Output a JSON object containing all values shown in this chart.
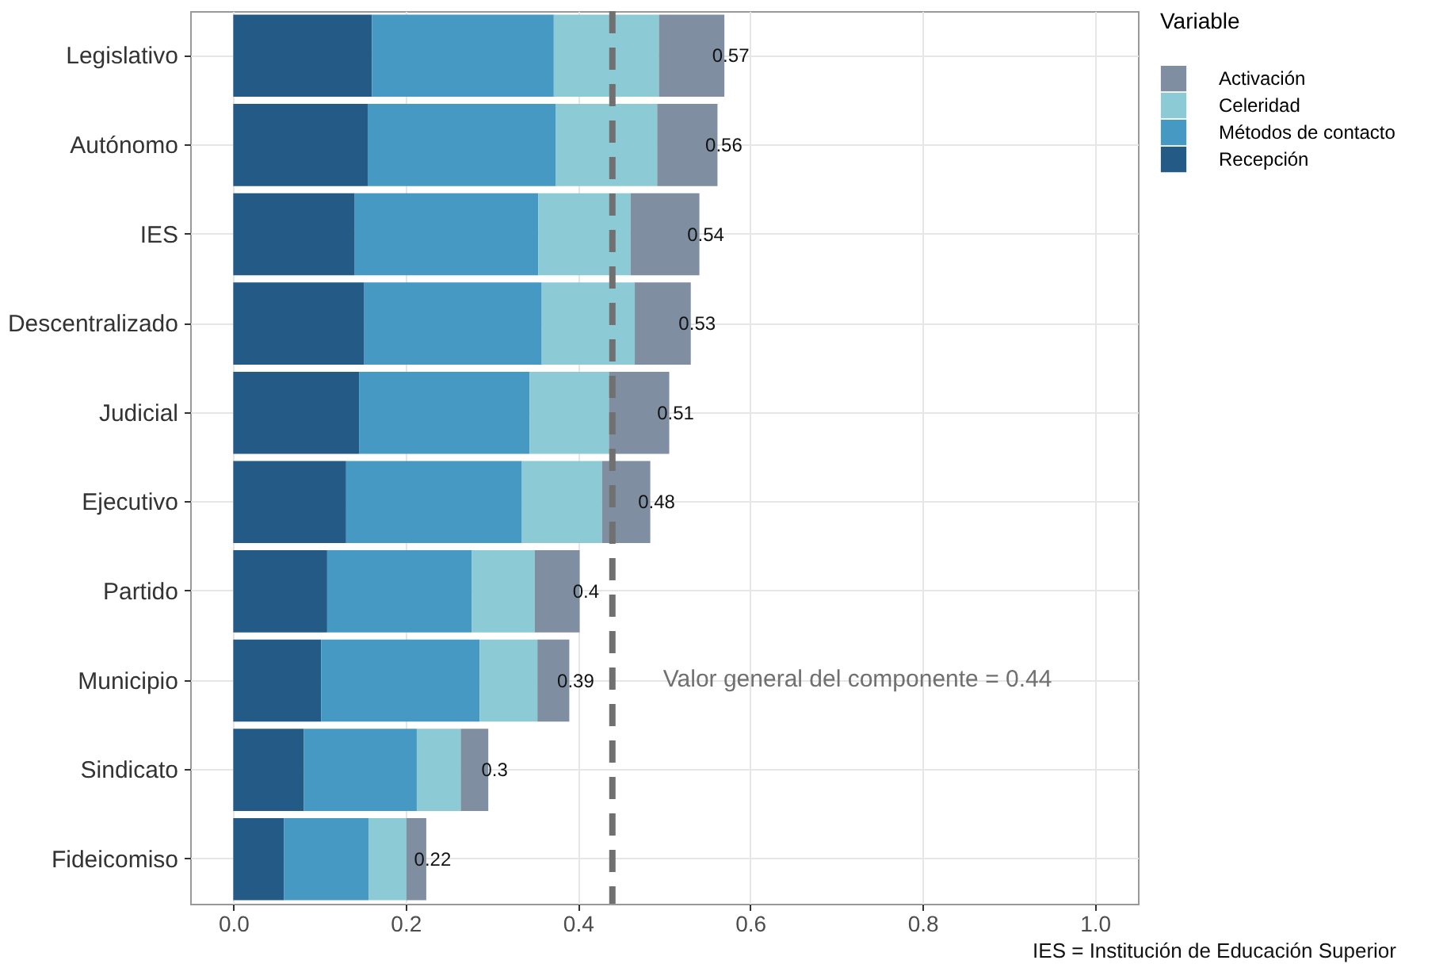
{
  "chart_data": {
    "type": "bar",
    "orientation": "horizontal",
    "stacked": true,
    "categories": [
      "Legislativo",
      "Autónomo",
      "IES",
      "Descentralizado",
      "Judicial",
      "Ejecutivo",
      "Partido",
      "Municipio",
      "Sindicato",
      "Fideicomiso"
    ],
    "series": [
      {
        "name": "Recepción",
        "color": "#235a86",
        "values": [
          0.161,
          0.156,
          0.141,
          0.152,
          0.146,
          0.131,
          0.109,
          0.102,
          0.082,
          0.059
        ]
      },
      {
        "name": "Métodos de contacto",
        "color": "#4599c3",
        "values": [
          0.211,
          0.218,
          0.213,
          0.206,
          0.198,
          0.204,
          0.168,
          0.184,
          0.131,
          0.098
        ]
      },
      {
        "name": "Celeridad",
        "color": "#8ccbd5",
        "values": [
          0.122,
          0.118,
          0.107,
          0.108,
          0.092,
          0.093,
          0.073,
          0.067,
          0.051,
          0.044
        ]
      },
      {
        "name": "Activación",
        "color": "#7f8ea0",
        "values": [
          0.076,
          0.07,
          0.08,
          0.065,
          0.07,
          0.056,
          0.052,
          0.037,
          0.032,
          0.023
        ]
      }
    ],
    "totals": [
      "0.57",
      "0.56",
      "0.54",
      "0.53",
      "0.51",
      "0.48",
      "0.4",
      "0.39",
      "0.3",
      "0.22"
    ],
    "xlim": [
      -0.05,
      1.05
    ],
    "xticks": [
      {
        "value": 0,
        "label": "0.0"
      },
      0.2,
      0.4,
      0.6,
      0.8,
      {
        "value": 1,
        "label": "1.0"
      }
    ],
    "grid": true,
    "legend": "right",
    "legend_title": "Variable",
    "ref_lines": [
      {
        "axis": "x",
        "value": 0.44,
        "label": "Valor general del componente = 0.44",
        "color": "#707070",
        "line_style": "dashed"
      }
    ],
    "annotations": [
      "IES = Institución de Educación Superior"
    ]
  }
}
